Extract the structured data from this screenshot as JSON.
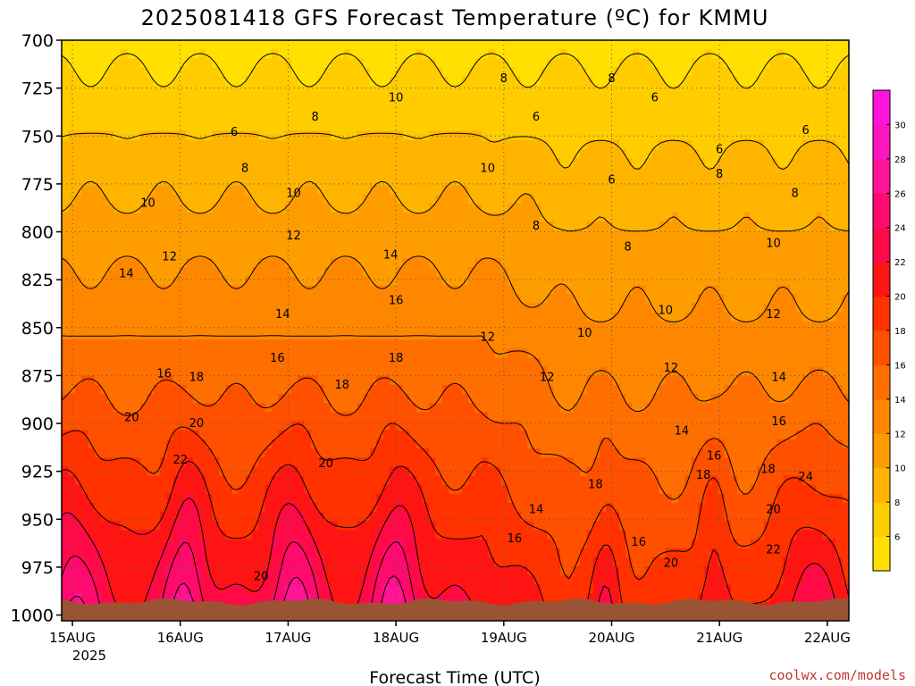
{
  "title": "2025081418 GFS Forecast Temperature (ºC) for KMMU",
  "credit": "coolwx.com/models",
  "chart_data": {
    "type": "heatmap",
    "title": "2025081418 GFS Forecast Temperature (ºC) for KMMU",
    "xlabel": "Forecast Time (UTC)",
    "ylabel": "",
    "x_ticks": [
      "15AUG",
      "16AUG",
      "17AUG",
      "18AUG",
      "19AUG",
      "20AUG",
      "21AUG",
      "22AUG"
    ],
    "x_sub_label": "2025",
    "x_values_day": [
      0,
      1,
      2,
      3,
      4,
      5,
      6,
      7
    ],
    "xlim_days": [
      -0.1,
      7.2
    ],
    "y_ticks": [
      700,
      725,
      750,
      775,
      800,
      825,
      850,
      875,
      900,
      925,
      950,
      975,
      1000
    ],
    "ylim": [
      1003,
      700
    ],
    "y_reversed": true,
    "grid": true,
    "colorbar": {
      "ticks": [
        6,
        8,
        10,
        12,
        14,
        16,
        18,
        20,
        22,
        24,
        26,
        28,
        30
      ],
      "range": [
        4,
        32
      ],
      "colors": [
        "#ffe000",
        "#ffcc00",
        "#ffb400",
        "#ff9d00",
        "#ff8700",
        "#ff6e00",
        "#ff5000",
        "#ff3200",
        "#ff1414",
        "#ff0a46",
        "#ff0a6e",
        "#ff1496",
        "#ff14be",
        "#ff14dc"
      ],
      "placement": "right"
    },
    "surface_pressure_hpa": 993,
    "contour_labels": [
      {
        "day": 1.5,
        "p": 748,
        "v": 6
      },
      {
        "day": 2.25,
        "p": 740,
        "v": 8
      },
      {
        "day": 3.0,
        "p": 730,
        "v": 10
      },
      {
        "day": 4.0,
        "p": 720,
        "v": 8
      },
      {
        "day": 4.3,
        "p": 740,
        "v": 6
      },
      {
        "day": 5.0,
        "p": 720,
        "v": 8
      },
      {
        "day": 5.4,
        "p": 730,
        "v": 6
      },
      {
        "day": 6.0,
        "p": 757,
        "v": 6
      },
      {
        "day": 6.8,
        "p": 747,
        "v": 6
      },
      {
        "day": 1.6,
        "p": 767,
        "v": 8
      },
      {
        "day": 3.85,
        "p": 767,
        "v": 10
      },
      {
        "day": 5.0,
        "p": 773,
        "v": 6
      },
      {
        "day": 6.0,
        "p": 770,
        "v": 8
      },
      {
        "day": 6.7,
        "p": 780,
        "v": 8
      },
      {
        "day": 0.7,
        "p": 785,
        "v": 10
      },
      {
        "day": 2.05,
        "p": 780,
        "v": 10
      },
      {
        "day": 4.3,
        "p": 797,
        "v": 8
      },
      {
        "day": 5.15,
        "p": 808,
        "v": 8
      },
      {
        "day": 6.5,
        "p": 806,
        "v": 10
      },
      {
        "day": 2.05,
        "p": 802,
        "v": 12
      },
      {
        "day": 0.9,
        "p": 813,
        "v": 12
      },
      {
        "day": 0.5,
        "p": 822,
        "v": 14
      },
      {
        "day": 2.95,
        "p": 812,
        "v": 14
      },
      {
        "day": 5.5,
        "p": 841,
        "v": 10
      },
      {
        "day": 6.5,
        "p": 843,
        "v": 12
      },
      {
        "day": 1.95,
        "p": 843,
        "v": 14
      },
      {
        "day": 3.0,
        "p": 836,
        "v": 16
      },
      {
        "day": 4.75,
        "p": 853,
        "v": 10
      },
      {
        "day": 3.85,
        "p": 855,
        "v": 12
      },
      {
        "day": 1.9,
        "p": 866,
        "v": 16
      },
      {
        "day": 3.0,
        "p": 866,
        "v": 18
      },
      {
        "day": 5.55,
        "p": 871,
        "v": 12
      },
      {
        "day": 0.85,
        "p": 874,
        "v": 16
      },
      {
        "day": 1.15,
        "p": 876,
        "v": 18
      },
      {
        "day": 4.4,
        "p": 876,
        "v": 12
      },
      {
        "day": 2.5,
        "p": 880,
        "v": 18
      },
      {
        "day": 6.55,
        "p": 876,
        "v": 14
      },
      {
        "day": 0.55,
        "p": 897,
        "v": 20
      },
      {
        "day": 1.15,
        "p": 900,
        "v": 20
      },
      {
        "day": 5.65,
        "p": 904,
        "v": 14
      },
      {
        "day": 6.55,
        "p": 899,
        "v": 16
      },
      {
        "day": 1.0,
        "p": 919,
        "v": 22
      },
      {
        "day": 2.35,
        "p": 921,
        "v": 20
      },
      {
        "day": 5.95,
        "p": 917,
        "v": 16
      },
      {
        "day": 6.45,
        "p": 924,
        "v": 18
      },
      {
        "day": 5.85,
        "p": 927,
        "v": 18
      },
      {
        "day": 6.8,
        "p": 928,
        "v": 24
      },
      {
        "day": 4.85,
        "p": 932,
        "v": 18
      },
      {
        "day": 4.3,
        "p": 945,
        "v": 14
      },
      {
        "day": 6.5,
        "p": 945,
        "v": 20
      },
      {
        "day": 4.1,
        "p": 960,
        "v": 16
      },
      {
        "day": 5.25,
        "p": 962,
        "v": 16
      },
      {
        "day": 6.5,
        "p": 966,
        "v": 22
      },
      {
        "day": 1.75,
        "p": 980,
        "v": 20
      },
      {
        "day": 5.55,
        "p": 973,
        "v": 20
      }
    ]
  }
}
